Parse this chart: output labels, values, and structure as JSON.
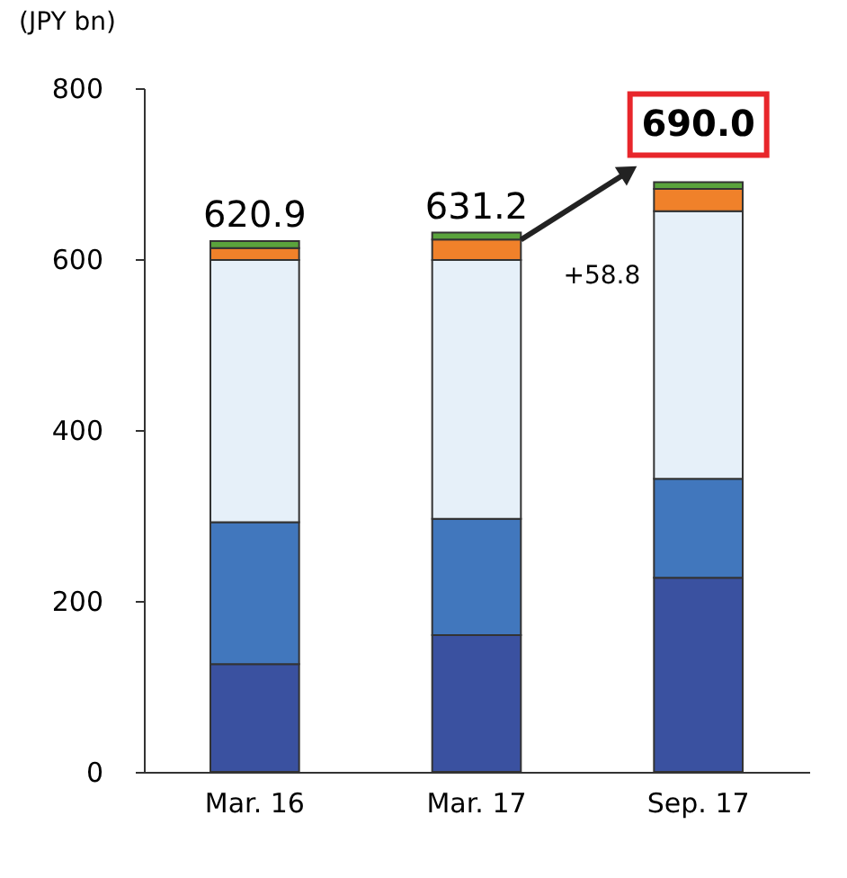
{
  "chart_data": {
    "type": "bar",
    "stacked": true,
    "ylabel": "(JPY bn)",
    "categories": [
      "Mar. 16",
      "Mar. 17",
      "Sep. 17"
    ],
    "series": [
      {
        "color": "#3a51a0",
        "values": [
          126,
          160,
          227
        ]
      },
      {
        "color": "#4177bd",
        "values": [
          166,
          136,
          116
        ]
      },
      {
        "color": "#e6f0f9",
        "values": [
          307,
          303,
          313
        ]
      },
      {
        "color": "#f0812a",
        "values": [
          14,
          24,
          26
        ]
      },
      {
        "color": "#5aa33c",
        "values": [
          8,
          8,
          8
        ]
      }
    ],
    "totals": [
      "620.9",
      "631.2",
      "690.0"
    ],
    "annotations": [
      "+58.8"
    ],
    "ylim": [
      0,
      800
    ],
    "yticks": [
      0,
      200,
      400,
      600,
      800
    ],
    "grid": false
  }
}
